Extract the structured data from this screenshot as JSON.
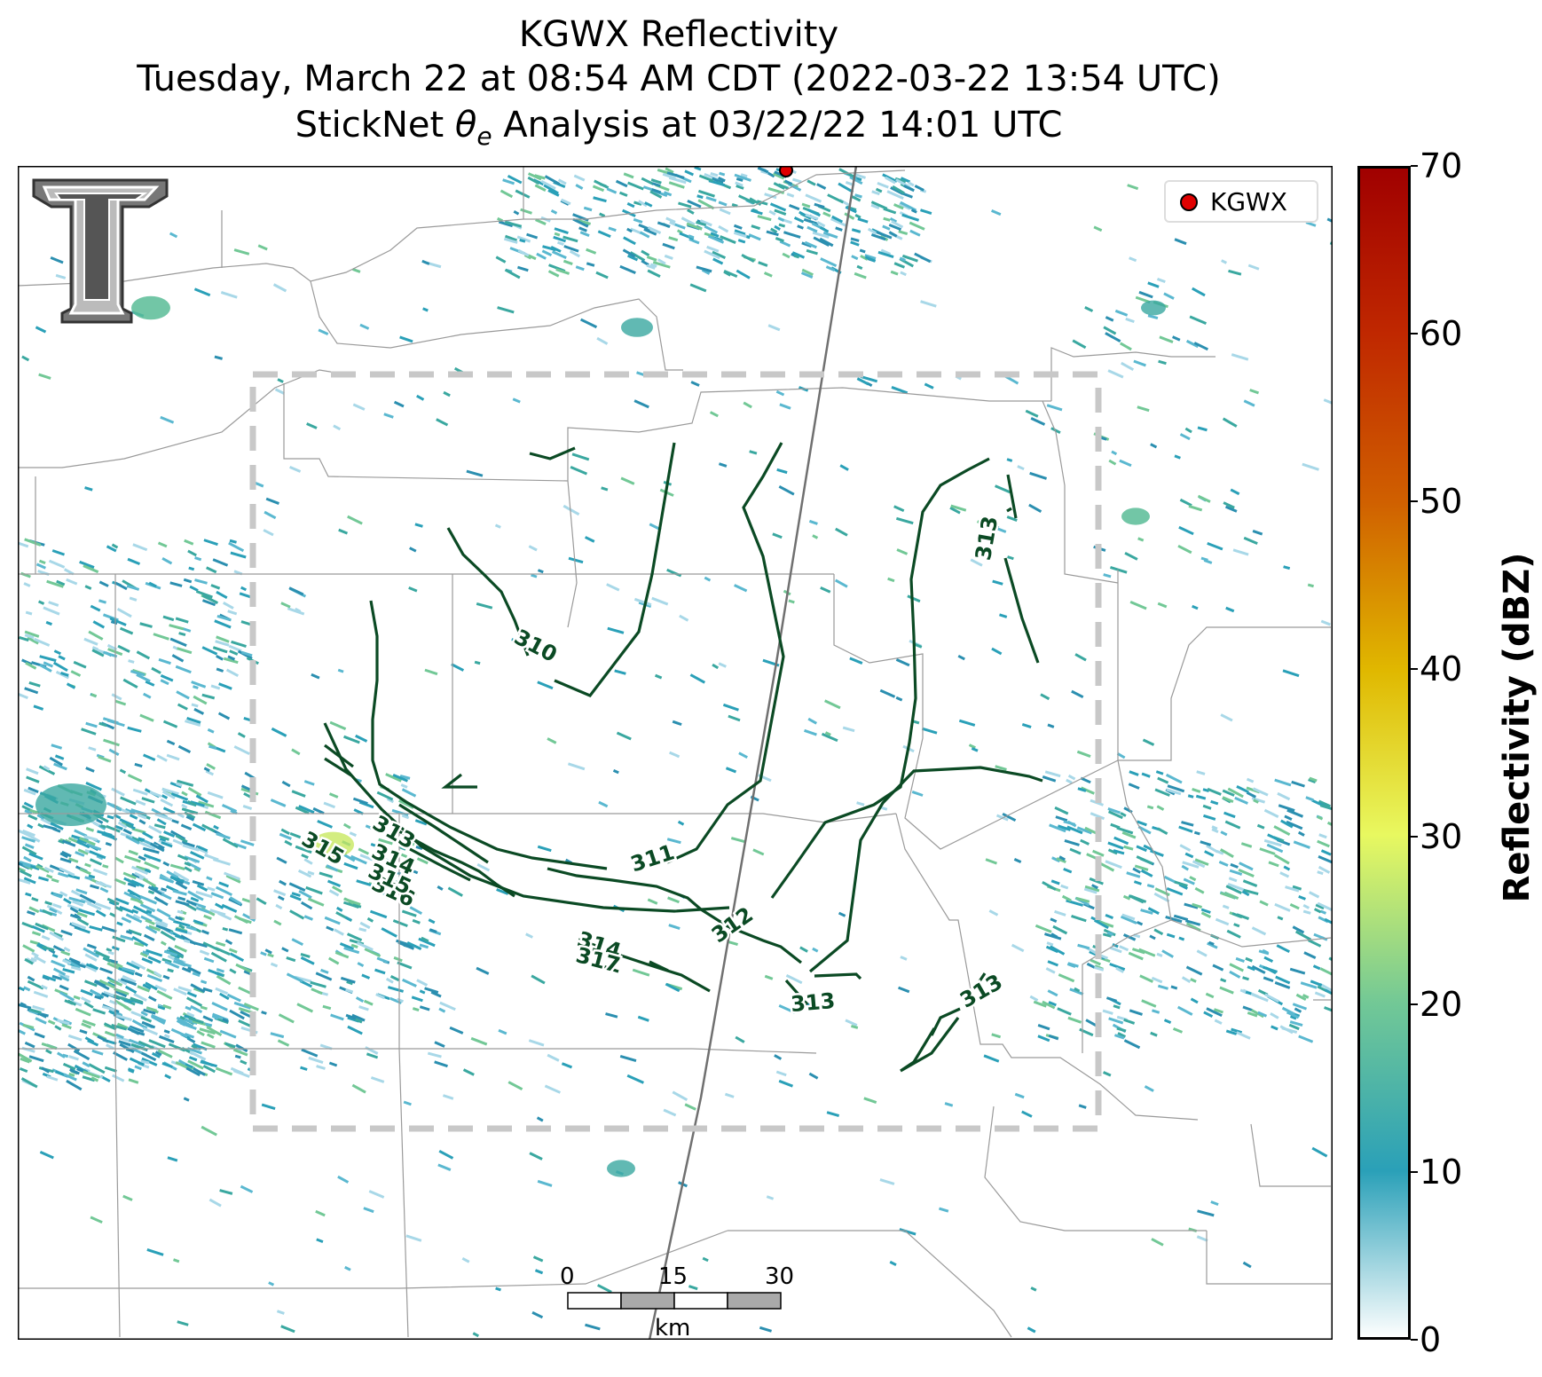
{
  "titles": {
    "line1": "KGWX Reflectivity",
    "line2": "Tuesday, March 22 at 08:54 AM CDT (2022-03-22 13:54 UTC)",
    "line3_prefix": "StickNet ",
    "line3_theta": "θ",
    "line3_sub": "e",
    "line3_suffix": " Analysis at 03/22/22 14:01 UTC"
  },
  "legend": {
    "label": "KGWX",
    "color": "#e00000"
  },
  "colorbar": {
    "label": "Reflectivity (dBZ)",
    "ticks": [
      "0",
      "10",
      "20",
      "30",
      "40",
      "50",
      "60",
      "70"
    ],
    "range": [
      0,
      70
    ],
    "colors": [
      "#ffffff",
      "#2aa0b8",
      "#72c896",
      "#e8f860",
      "#e0b800",
      "#d06000",
      "#c02800",
      "#a00000"
    ]
  },
  "scalebar": {
    "labels": [
      "0",
      "15",
      "30"
    ],
    "unit": "km"
  },
  "contour_labels": [
    "310",
    "311",
    "312",
    "313",
    "313",
    "313",
    "313",
    "314",
    "315",
    "316",
    "317",
    "314",
    "315"
  ],
  "contour_color": "#0b4a24"
}
